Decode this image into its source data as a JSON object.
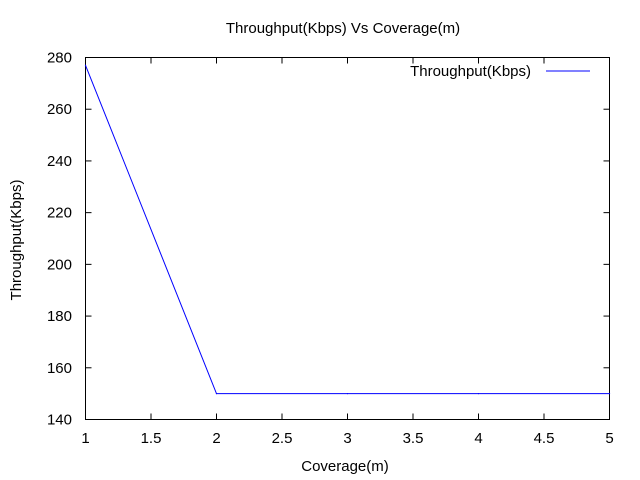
{
  "chart_data": {
    "type": "line",
    "title": "Throughput(Kbps) Vs Coverage(m)",
    "xlabel": "Coverage(m)",
    "ylabel": "Throughput(Kbps)",
    "xlim": [
      1,
      5
    ],
    "ylim": [
      140,
      280
    ],
    "xticks": [
      1,
      1.5,
      2,
      2.5,
      3,
      3.5,
      4,
      4.5,
      5
    ],
    "xtick_labels": [
      "1",
      "1.5",
      "2",
      "2.5",
      "3",
      "3.5",
      "4",
      "4.5",
      "5"
    ],
    "yticks": [
      140,
      160,
      180,
      200,
      220,
      240,
      260,
      280
    ],
    "ytick_labels": [
      "140",
      "160",
      "180",
      "200",
      "220",
      "240",
      "260",
      "280"
    ],
    "grid": false,
    "legend_position": "top-right",
    "series": [
      {
        "name": "Throughput(Kbps)",
        "color": "#0000ff",
        "x": [
          1,
          2,
          3,
          4,
          5
        ],
        "y": [
          277,
          150,
          150,
          150,
          150
        ]
      }
    ]
  }
}
